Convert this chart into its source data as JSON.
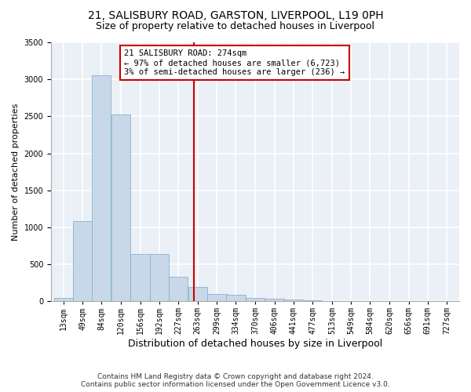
{
  "title1": "21, SALISBURY ROAD, GARSTON, LIVERPOOL, L19 0PH",
  "title2": "Size of property relative to detached houses in Liverpool",
  "xlabel": "Distribution of detached houses by size in Liverpool",
  "ylabel": "Number of detached properties",
  "property_label": "21 SALISBURY ROAD: 274sqm",
  "annotation_line1": "← 97% of detached houses are smaller (6,723)",
  "annotation_line2": "3% of semi-detached houses are larger (236) →",
  "footnote1": "Contains HM Land Registry data © Crown copyright and database right 2024.",
  "footnote2": "Contains public sector information licensed under the Open Government Licence v3.0.",
  "bin_labels": [
    "13sqm",
    "49sqm",
    "84sqm",
    "120sqm",
    "156sqm",
    "192sqm",
    "227sqm",
    "263sqm",
    "299sqm",
    "334sqm",
    "370sqm",
    "406sqm",
    "441sqm",
    "477sqm",
    "513sqm",
    "549sqm",
    "584sqm",
    "620sqm",
    "656sqm",
    "691sqm",
    "727sqm"
  ],
  "bin_left_edges": [
    13,
    49,
    84,
    120,
    156,
    192,
    227,
    263,
    299,
    334,
    370,
    406,
    441,
    477,
    513,
    549,
    584,
    620,
    656,
    691,
    727
  ],
  "bar_heights": [
    50,
    1080,
    3050,
    2530,
    640,
    640,
    330,
    190,
    100,
    90,
    50,
    30,
    20,
    10,
    5,
    5,
    5,
    3,
    2,
    2,
    2
  ],
  "bar_color": "#c8d8e8",
  "bar_edge_color": "#7aaac8",
  "vline_color": "#cc0000",
  "vline_x": 274,
  "ylim": [
    0,
    3500
  ],
  "yticks": [
    0,
    500,
    1000,
    1500,
    2000,
    2500,
    3000,
    3500
  ],
  "bg_color": "#eaf0f6",
  "grid_color": "#ffffff",
  "annotation_box_edge": "#cc0000",
  "title1_fontsize": 10,
  "title2_fontsize": 9,
  "xlabel_fontsize": 9,
  "ylabel_fontsize": 8,
  "tick_fontsize": 7,
  "annotation_fontsize": 7.5,
  "footnote_fontsize": 6.5
}
